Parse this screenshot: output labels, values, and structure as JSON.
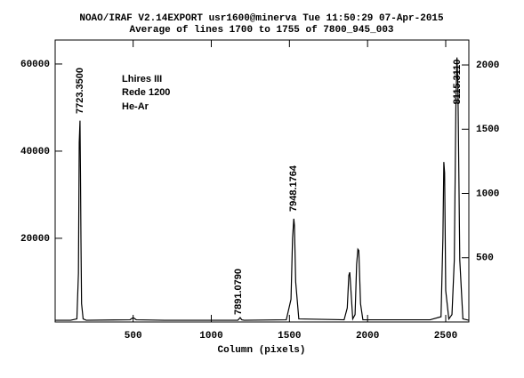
{
  "chart_data": {
    "type": "line",
    "title": "NOAO/IRAF V2.14EXPORT usr1600@minerva Tue 11:50:29 07-Apr-2015",
    "subtitle": "Average of lines 1700 to 1755 of 7800_945_003",
    "x_label": "Column (pixels)",
    "annotations": [
      "7723.3500",
      "7891.0790",
      "7948.1764",
      "8115.3110",
      "Lhires III",
      "Rede 1200",
      "He-Ar"
    ],
    "x": [
      1,
      100,
      140,
      150,
      155,
      160,
      163,
      166,
      170,
      180,
      200,
      480,
      500,
      520,
      700,
      1170,
      1185,
      1195,
      1210,
      1480,
      1510,
      1520,
      1528,
      1532,
      1540,
      1560,
      1850,
      1870,
      1880,
      1886,
      1892,
      1905,
      1920,
      1930,
      1938,
      1944,
      1955,
      1970,
      2400,
      2470,
      2482,
      2488,
      2493,
      2500,
      2520,
      2540,
      2555,
      2565,
      2572,
      2578,
      2590,
      2610,
      2648
    ],
    "series": [
      {
        "color": "#000000",
        "values": [
          1200,
          1200,
          1500,
          12000,
          42000,
          47000,
          35000,
          20000,
          5000,
          1500,
          1200,
          1300,
          1800,
          1300,
          1200,
          1200,
          1800,
          1300,
          1200,
          1300,
          6000,
          20000,
          24500,
          23000,
          10000,
          1500,
          1300,
          4000,
          11500,
          12200,
          9000,
          1500,
          2500,
          14000,
          17500,
          17200,
          5000,
          1300,
          1300,
          2000,
          20000,
          37500,
          35000,
          8000,
          1500,
          2500,
          15000,
          50000,
          61500,
          55000,
          15000,
          1500,
          1200
        ]
      }
    ],
    "xlim": [
      1,
      2648
    ],
    "ylim": [
      800,
      65500
    ],
    "y2lim": [
      0,
      2194
    ],
    "xticks": [
      500,
      1000,
      1500,
      2000,
      2500
    ],
    "yticks": [
      20000,
      40000,
      60000
    ],
    "y2ticks": [
      500,
      1000,
      1500,
      2000
    ]
  }
}
